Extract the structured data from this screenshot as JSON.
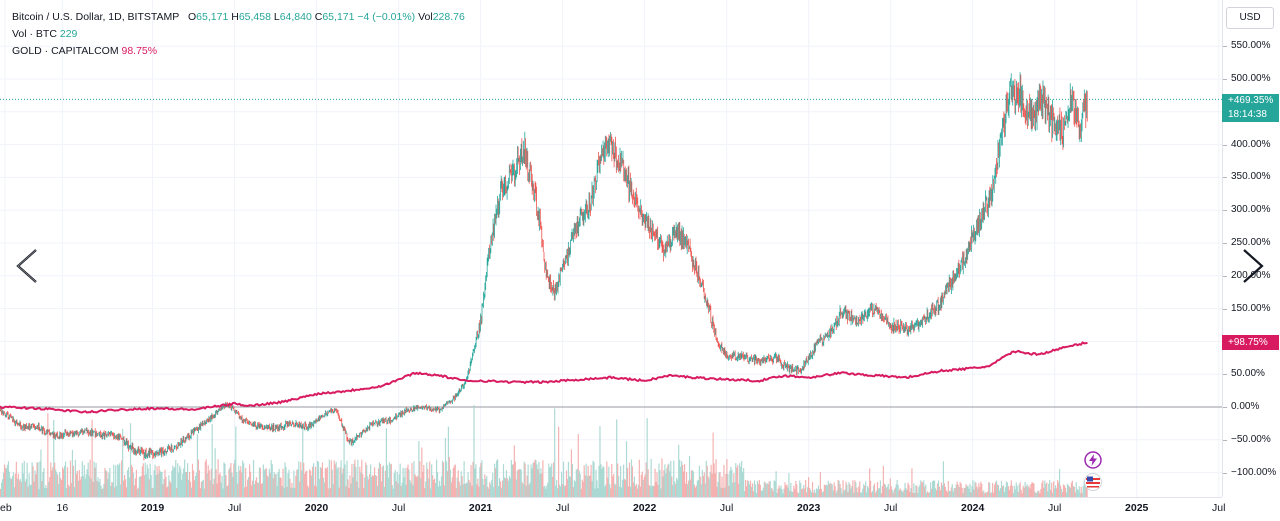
{
  "legend": {
    "symbol": "Bitcoin / U.S. Dollar, 1D, BITSTAMP",
    "open_label": "O",
    "open": "65,171",
    "high_label": "H",
    "high": "65,458",
    "low_label": "L",
    "low": "64,840",
    "close_label": "C",
    "close": "65,171",
    "change": "−4 (−0.01%)",
    "vol_label": "Vol",
    "vol": "228.76",
    "volume_series": "Vol · BTC",
    "volume_value": "229",
    "compare_series": "GOLD · CAPITALCOM",
    "compare_value": "98.75%"
  },
  "currency_button": "USD",
  "labels": {
    "btc_last": "+469.35%",
    "btc_countdown": "18:14:38",
    "gold_last": "+98.75%"
  },
  "colors": {
    "up": "#26a69a",
    "down": "#ef5350",
    "gold": "#d81b60",
    "zero_line": "#9598a1",
    "grid": "#f0f3fa"
  },
  "icons": [
    "chevron-left-icon",
    "chevron-right-icon",
    "lightning-icon",
    "us-flag-icon"
  ],
  "chart_data": {
    "type": "line",
    "title": "Bitcoin / U.S. Dollar, 1D, BITSTAMP",
    "y_scale": "percent",
    "ylim": [
      -125,
      560
    ],
    "y_ticks": [
      "550.00%",
      "500.00%",
      "450.00%",
      "400.00%",
      "350.00%",
      "300.00%",
      "250.00%",
      "200.00%",
      "150.00%",
      "100.00%",
      "50.00%",
      "0.00%",
      "−50.00%",
      "−100.00%"
    ],
    "y_tick_values": [
      550,
      500,
      450,
      400,
      350,
      300,
      250,
      200,
      150,
      100,
      50,
      0,
      -50,
      -100
    ],
    "x_ticks": [
      "eb",
      "16",
      "2019",
      "Jul",
      "2020",
      "Jul",
      "2021",
      "Jul",
      "2022",
      "Jul",
      "2023",
      "Jul",
      "2024",
      "Jul",
      "2025",
      "Jul"
    ],
    "x_tick_values": [
      2018.1,
      2018.45,
      2019.0,
      2019.5,
      2020.0,
      2020.5,
      2021.0,
      2021.5,
      2022.0,
      2022.5,
      2023.0,
      2023.5,
      2024.0,
      2024.5,
      2025.0,
      2025.5
    ],
    "x_bold_ticks": [
      "2019",
      "2020",
      "2021",
      "2022",
      "2023",
      "2024",
      "2025"
    ],
    "xlim": [
      2018.07,
      2025.52
    ],
    "series": [
      {
        "name": "Bitcoin / U.S. Dollar",
        "style": "candles",
        "x": [
          2018.07,
          2018.2,
          2018.3,
          2018.4,
          2018.5,
          2018.6,
          2018.7,
          2018.8,
          2018.88,
          2018.95,
          2019.05,
          2019.15,
          2019.25,
          2019.35,
          2019.45,
          2019.5,
          2019.55,
          2019.65,
          2019.75,
          2019.85,
          2019.95,
          2020.05,
          2020.12,
          2020.2,
          2020.25,
          2020.35,
          2020.45,
          2020.55,
          2020.65,
          2020.75,
          2020.85,
          2020.92,
          2021.0,
          2021.05,
          2021.12,
          2021.2,
          2021.27,
          2021.35,
          2021.4,
          2021.45,
          2021.52,
          2021.6,
          2021.67,
          2021.73,
          2021.8,
          2021.87,
          2021.93,
          2022.0,
          2022.05,
          2022.12,
          2022.2,
          2022.27,
          2022.33,
          2022.4,
          2022.45,
          2022.5,
          2022.6,
          2022.7,
          2022.8,
          2022.87,
          2022.95,
          2023.05,
          2023.12,
          2023.2,
          2023.3,
          2023.4,
          2023.5,
          2023.6,
          2023.7,
          2023.8,
          2023.87,
          2023.93,
          2024.0,
          2024.05,
          2024.12,
          2024.18,
          2024.22,
          2024.28,
          2024.35,
          2024.42,
          2024.5,
          2024.55,
          2024.6,
          2024.65,
          2024.7
        ],
        "values": [
          -5,
          -30,
          -30,
          -45,
          -40,
          -38,
          -43,
          -45,
          -65,
          -72,
          -68,
          -60,
          -38,
          -18,
          5,
          -5,
          -20,
          -30,
          -32,
          -25,
          -30,
          -10,
          -5,
          -55,
          -45,
          -25,
          -20,
          -5,
          0,
          -5,
          15,
          45,
          130,
          230,
          330,
          360,
          390,
          300,
          200,
          175,
          230,
          280,
          310,
          380,
          400,
          360,
          320,
          280,
          270,
          240,
          270,
          240,
          200,
          140,
          95,
          80,
          75,
          70,
          75,
          60,
          55,
          95,
          110,
          145,
          130,
          150,
          125,
          120,
          130,
          160,
          190,
          215,
          260,
          290,
          330,
          420,
          470,
          480,
          440,
          470,
          430,
          420,
          470,
          430,
          469
        ]
      },
      {
        "name": "GOLD · CAPITALCOM",
        "style": "line",
        "x": [
          2018.07,
          2018.3,
          2018.6,
          2018.8,
          2019.0,
          2019.25,
          2019.5,
          2019.6,
          2019.8,
          2020.0,
          2020.2,
          2020.4,
          2020.6,
          2020.75,
          2020.9,
          2021.0,
          2021.2,
          2021.4,
          2021.6,
          2021.8,
          2022.0,
          2022.15,
          2022.3,
          2022.5,
          2022.7,
          2022.85,
          2023.0,
          2023.2,
          2023.4,
          2023.6,
          2023.8,
          2023.95,
          2024.1,
          2024.25,
          2024.4,
          2024.55,
          2024.7
        ],
        "values": [
          0,
          -2,
          -8,
          -4,
          -2,
          -4,
          5,
          2,
          8,
          20,
          25,
          32,
          52,
          48,
          40,
          40,
          38,
          38,
          42,
          45,
          40,
          48,
          45,
          42,
          40,
          48,
          45,
          52,
          48,
          45,
          55,
          58,
          62,
          85,
          80,
          90,
          98.75
        ]
      }
    ]
  }
}
